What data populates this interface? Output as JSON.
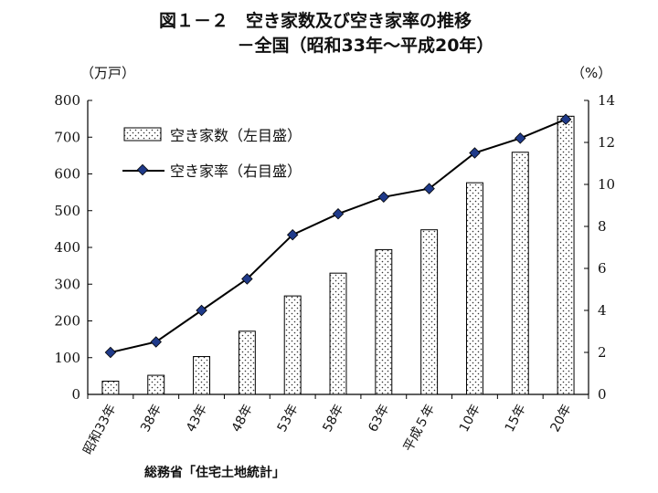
{
  "chart_data": {
    "type": "bar+line",
    "title": "図１－２　空き家数及び空き家率の推移",
    "subtitle": "－全国（昭和33年～平成20年）",
    "y_left_unit": "（万戸）",
    "y_right_unit": "（%）",
    "y_left_range": [
      0,
      800
    ],
    "y_left_ticks": [
      "0",
      "100",
      "200",
      "300",
      "400",
      "500",
      "600",
      "700",
      "800"
    ],
    "y_right_range": [
      0,
      14
    ],
    "y_right_ticks": [
      "0",
      "2",
      "4",
      "6",
      "8",
      "10",
      "12",
      "14"
    ],
    "categories": [
      "昭和33年",
      "38年",
      "43年",
      "48年",
      "53年",
      "58年",
      "63年",
      "平成５年",
      "10年",
      "15年",
      "20年"
    ],
    "series": [
      {
        "name": "空き家数（左目盛）",
        "type": "bar",
        "axis": "left",
        "values": [
          36,
          52,
          103,
          172,
          268,
          330,
          394,
          448,
          576,
          659,
          757
        ]
      },
      {
        "name": "空き家率（右目盛）",
        "type": "line",
        "axis": "right",
        "values": [
          2.0,
          2.5,
          4.0,
          5.5,
          7.6,
          8.6,
          9.4,
          9.8,
          11.5,
          12.2,
          13.1
        ]
      }
    ],
    "legend_position": "top-left",
    "grid": false,
    "source": "総務省「住宅土地統計」"
  }
}
